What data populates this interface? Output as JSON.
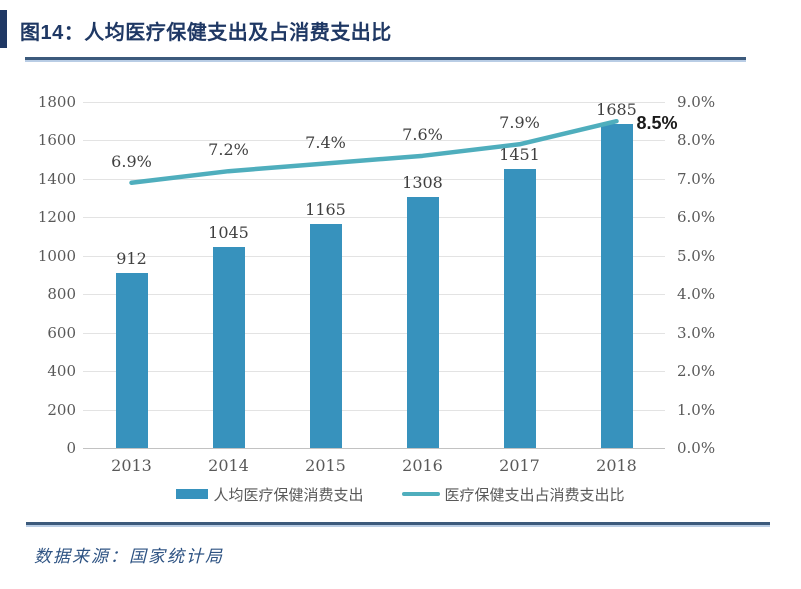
{
  "figure": {
    "title": "图14：人均医疗保健支出及占消费支出比",
    "source": "数据来源：国家统计局"
  },
  "colors": {
    "accent_navy": "#1F3864",
    "rule_navy": "#3C5A7C",
    "rule_edge": "#B9CDE5",
    "bar_blue": "#3792BD",
    "line_teal": "#4FAEBD",
    "grid": "#E3E3E3",
    "axis_label": "#595959",
    "data_label": "#404040",
    "highlight_label": "#1A1A1A",
    "source_text": "#2E5383"
  },
  "chart_data": {
    "type": "bar+line combo",
    "categories": [
      "2013",
      "2014",
      "2015",
      "2016",
      "2017",
      "2018"
    ],
    "series": [
      {
        "name": "人均医疗保健消费支出",
        "type": "bar",
        "axis": "left",
        "values": [
          912,
          1045,
          1165,
          1308,
          1451,
          1685
        ],
        "labels": [
          "912",
          "1045",
          "1165",
          "1308",
          "1451",
          "1685"
        ]
      },
      {
        "name": "医疗保健支出占消费支出比",
        "type": "line",
        "axis": "right",
        "values": [
          6.9,
          7.2,
          7.4,
          7.6,
          7.9,
          8.5
        ],
        "labels": [
          "6.9%",
          "7.2%",
          "7.4%",
          "7.6%",
          "7.9%",
          "8.5%"
        ]
      }
    ],
    "left_axis": {
      "min": 0,
      "max": 1800,
      "step": 200,
      "ticks": [
        "0",
        "200",
        "400",
        "600",
        "800",
        "1000",
        "1200",
        "1400",
        "1600",
        "1800"
      ]
    },
    "right_axis": {
      "min": 0,
      "max": 9,
      "step": 1,
      "ticks": [
        "0.0%",
        "1.0%",
        "2.0%",
        "3.0%",
        "4.0%",
        "5.0%",
        "6.0%",
        "7.0%",
        "8.0%",
        "9.0%"
      ]
    },
    "grid": true,
    "legend_position": "bottom"
  }
}
